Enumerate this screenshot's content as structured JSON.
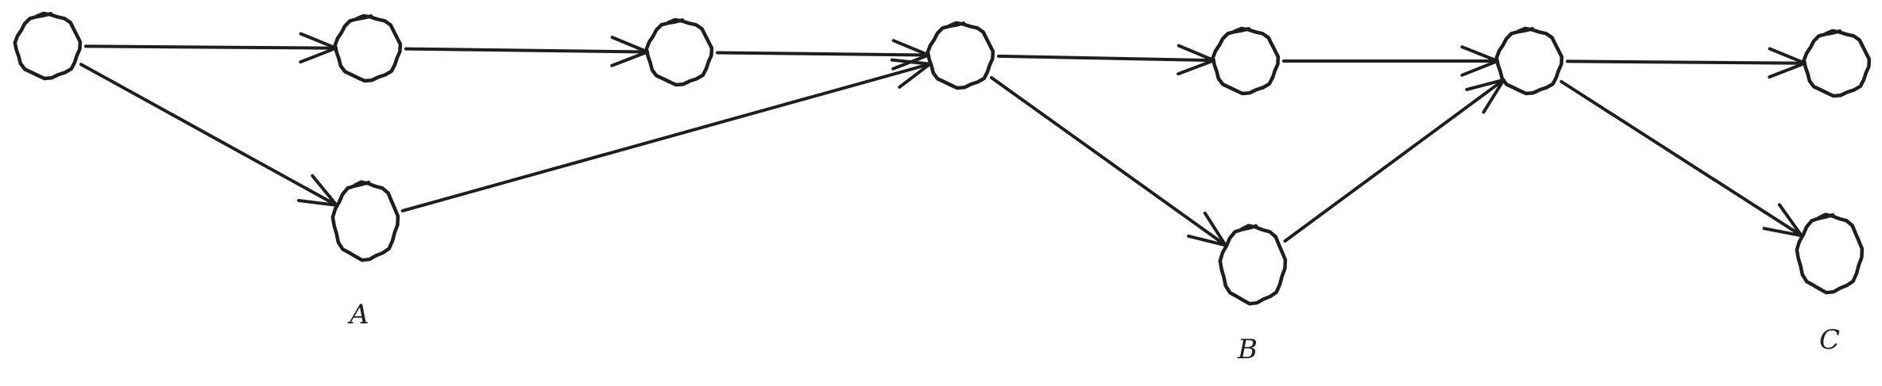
{
  "diagram": {
    "type": "directed-graph",
    "stroke_color": "#1e1e1e",
    "background": "#ffffff",
    "labels": {
      "a": "A",
      "b": "B",
      "c": "C"
    },
    "nodes": [
      {
        "id": "n1"
      },
      {
        "id": "n2"
      },
      {
        "id": "n3"
      },
      {
        "id": "n4"
      },
      {
        "id": "n5"
      },
      {
        "id": "n6"
      },
      {
        "id": "n7"
      },
      {
        "id": "a",
        "label_key": "a"
      },
      {
        "id": "b",
        "label_key": "b"
      },
      {
        "id": "c",
        "label_key": "c"
      }
    ],
    "edges": [
      {
        "from": "n1",
        "to": "n2"
      },
      {
        "from": "n2",
        "to": "n3"
      },
      {
        "from": "n3",
        "to": "n4"
      },
      {
        "from": "n4",
        "to": "n5"
      },
      {
        "from": "n5",
        "to": "n6"
      },
      {
        "from": "n6",
        "to": "n7"
      },
      {
        "from": "n1",
        "to": "a"
      },
      {
        "from": "a",
        "to": "n4"
      },
      {
        "from": "n4",
        "to": "b"
      },
      {
        "from": "b",
        "to": "n6"
      },
      {
        "from": "n6",
        "to": "c"
      }
    ]
  }
}
